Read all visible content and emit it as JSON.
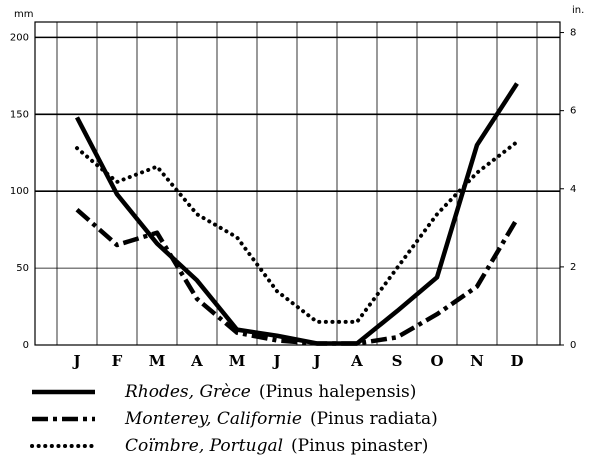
{
  "chart_data": {
    "type": "line",
    "y_unit": "mm",
    "y2_unit": "in.",
    "categories": [
      "J",
      "F",
      "M",
      "A",
      "M",
      "J",
      "J",
      "A",
      "S",
      "O",
      "N",
      "D"
    ],
    "series": [
      {
        "name": "Rhodes, Grèce",
        "species": "(Pinus halepensis)",
        "color": "#000000",
        "style": "solid",
        "values": [
          148,
          98,
          66,
          42,
          10,
          6,
          1,
          1,
          22,
          44,
          130,
          170
        ]
      },
      {
        "name": "Monterey, Californie",
        "species": "(Pinus radiata)",
        "color": "#000000",
        "style": "dashdot",
        "values": [
          88,
          65,
          73,
          30,
          8,
          3,
          1,
          1,
          5,
          20,
          38,
          82
        ]
      },
      {
        "name": "Coïmbre, Portugal",
        "species": "(Pinus pinaster)",
        "color": "#000000",
        "style": "dotted",
        "values": [
          128,
          106,
          116,
          85,
          70,
          35,
          15,
          15,
          50,
          85,
          112,
          132
        ]
      }
    ],
    "ylim": [
      0,
      210
    ],
    "yticks": [
      0,
      50,
      100,
      150,
      200
    ],
    "y2lim": [
      0,
      8.27
    ],
    "y2ticks": [
      0,
      2,
      4,
      6,
      8
    ],
    "grid": true
  }
}
